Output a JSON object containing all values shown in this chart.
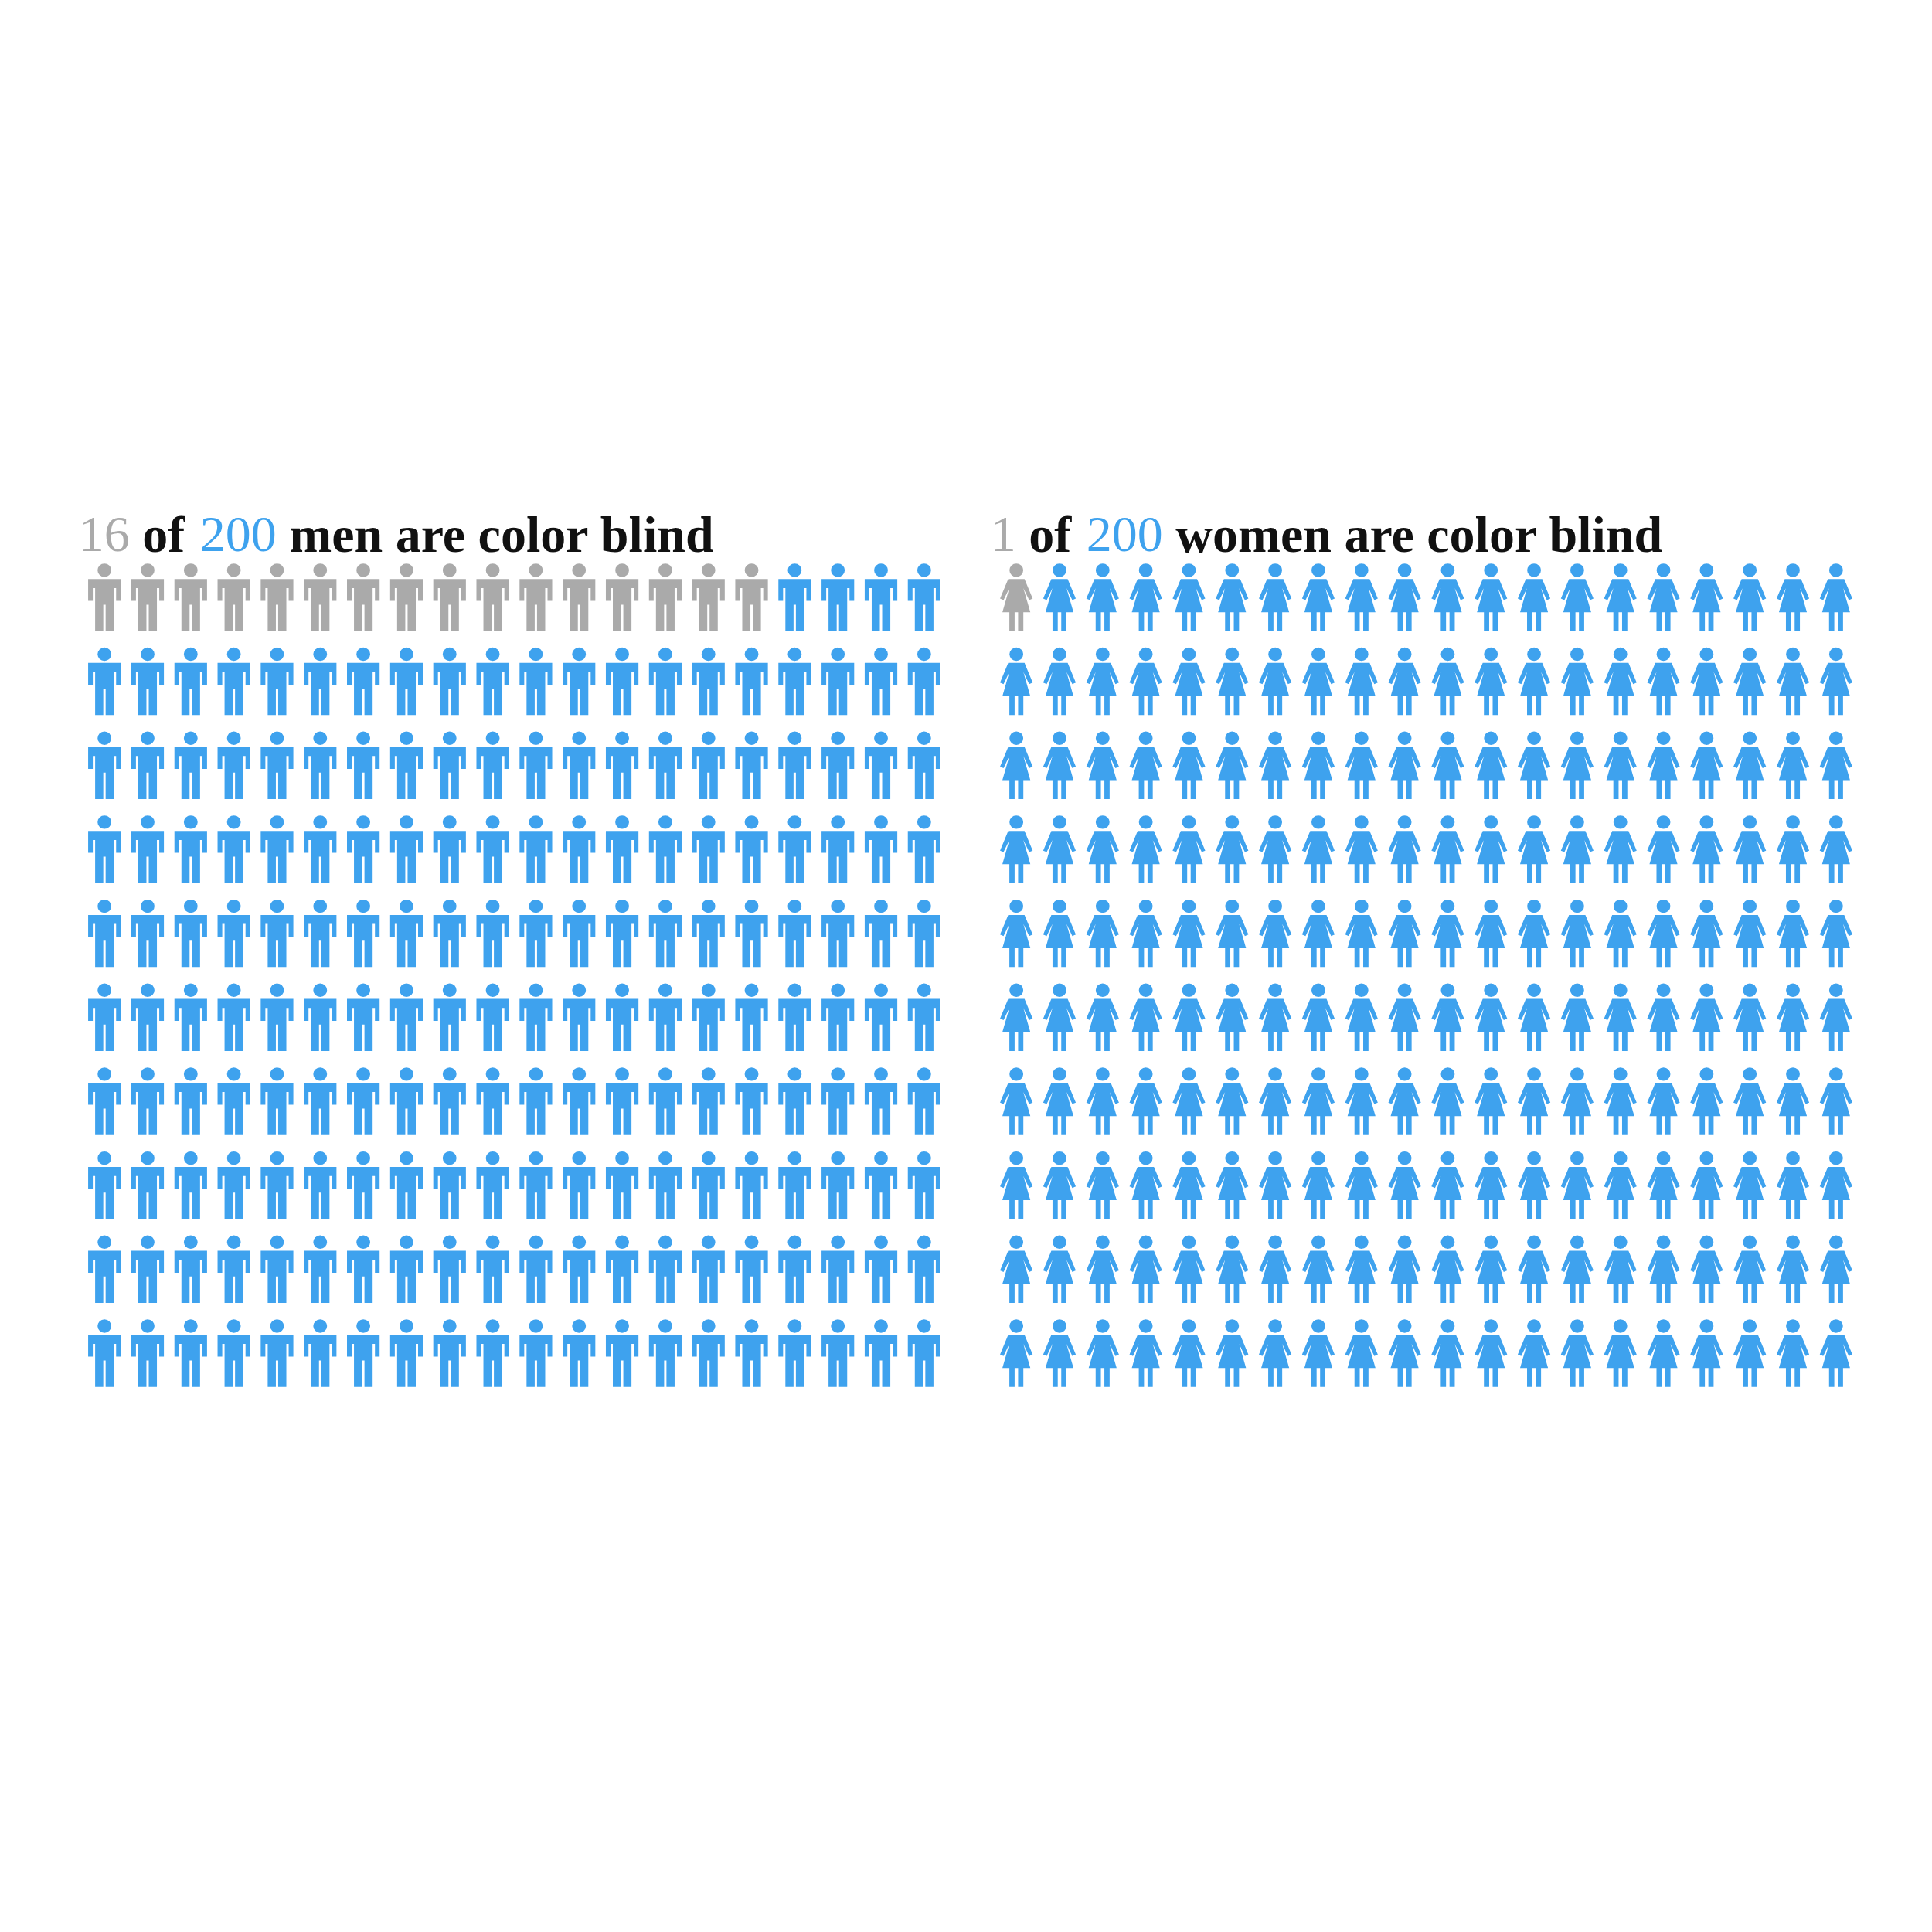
{
  "chart_data": [
    {
      "type": "other",
      "annotations": [
        "of",
        "men are color blind"
      ],
      "categories": [
        null,
        null
      ],
      "values": [
        16,
        200
      ],
      "value_labels": [
        "16",
        "200"
      ],
      "colors": [
        "#aaaaaa",
        "#3ea2ee"
      ]
    },
    {
      "type": "other",
      "annotations": [
        "of",
        "women are color blind"
      ],
      "categories": [
        null,
        null
      ],
      "values": [
        1,
        200
      ],
      "value_labels": [
        "1",
        "200"
      ],
      "colors": [
        "#aaaaaa",
        "#3ea2ee"
      ]
    }
  ]
}
